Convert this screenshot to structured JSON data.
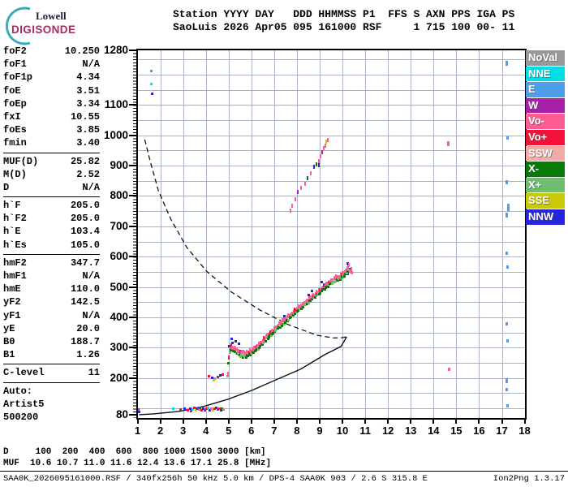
{
  "header": {
    "logo": {
      "line1": "Lowell",
      "line2": "DIGISONDE"
    },
    "info_line1": "Station YYYY DAY   DDD HHMMSS P1  FFS S AXN PPS IGA PS",
    "info_line2": "SaoLuis 2026 Apr05 095 161000 RSF     1 715 100 00- 11"
  },
  "left_panel": {
    "sections": [
      {
        "rows": [
          [
            "foF2",
            "10.250"
          ],
          [
            "foF1",
            "N/A"
          ],
          [
            "foF1p",
            "4.34"
          ],
          [
            "foE",
            "3.51"
          ],
          [
            "foEp",
            "3.34"
          ],
          [
            "fxI",
            "10.55"
          ],
          [
            "foEs",
            "3.85"
          ],
          [
            "fmin",
            "3.40"
          ]
        ]
      },
      {
        "rows": [
          [
            "MUF(D)",
            "25.82"
          ],
          [
            "M(D)",
            "2.52"
          ],
          [
            "D",
            "N/A"
          ]
        ]
      },
      {
        "rows": [
          [
            "h`F",
            "205.0"
          ],
          [
            "h`F2",
            "205.0"
          ],
          [
            "h`E",
            "103.4"
          ],
          [
            "h`Es",
            "105.0"
          ]
        ]
      },
      {
        "rows": [
          [
            "hmF2",
            "347.7"
          ],
          [
            "hmF1",
            "N/A"
          ],
          [
            "hmE",
            "110.0"
          ],
          [
            "yF2",
            "142.5"
          ],
          [
            "yF1",
            "N/A"
          ],
          [
            "yE",
            "20.0"
          ],
          [
            "B0",
            "188.7"
          ],
          [
            "B1",
            "1.26"
          ]
        ]
      },
      {
        "rows": [
          [
            "C-level",
            "11"
          ]
        ]
      },
      {
        "rows": [
          [
            "Auto:",
            ""
          ],
          [
            "Artist5",
            ""
          ],
          [
            "500200",
            ""
          ]
        ]
      }
    ]
  },
  "muf_table": {
    "rows": [
      {
        "label": "D",
        "values": [
          "100",
          "200",
          "400",
          "600",
          "800",
          "1000",
          "1500",
          "3000"
        ],
        "unit": "[km]"
      },
      {
        "label": "MUF",
        "values": [
          "10.6",
          "10.7",
          "11.0",
          "11.6",
          "12.4",
          "13.6",
          "17.1",
          "25.8"
        ],
        "unit": "[MHz]"
      }
    ]
  },
  "status_bar": {
    "left": "SAA0K_2026095161000.RSF / 340fx256h 50 kHz 5.0 km / DPS-4 SAA0K 903 / 2.6 S 315.8 E",
    "right": "Ion2Png 1.3.17"
  },
  "chart_data": {
    "type": "scatter",
    "title": "Digisonde ionogram SaoLuis 2026 Apr05 095 161000",
    "x_axis": {
      "unit": "MHz",
      "min": 1,
      "max": 18,
      "ticks": [
        1,
        2,
        3,
        4,
        5,
        6,
        7,
        8,
        9,
        10,
        11,
        12,
        13,
        14,
        15,
        16,
        17,
        18
      ]
    },
    "y_axis": {
      "unit": "km",
      "min": 68,
      "max": 1280,
      "labeled_ticks": [
        1280,
        1100,
        1000,
        900,
        800,
        700,
        600,
        500,
        400,
        300,
        200,
        80
      ]
    },
    "grid": {
      "v_step_mhz": 1,
      "h_step_km": 50,
      "color": "#a9b3c6"
    },
    "legend": [
      {
        "label": "NoVal",
        "color": "#999999"
      },
      {
        "label": "NNE",
        "color": "#00dfe8"
      },
      {
        "label": "E",
        "color": "#4d9fec"
      },
      {
        "label": "W",
        "color": "#a61fa6"
      },
      {
        "label": "Vo-",
        "color": "#ff5c93"
      },
      {
        "label": "Vo+",
        "color": "#f21237"
      },
      {
        "label": "SSW",
        "color": "#f2aca6"
      },
      {
        "label": "X-",
        "color": "#077a07"
      },
      {
        "label": "X+",
        "color": "#6fbe6f"
      },
      {
        "label": "SSE",
        "color": "#c9c909"
      },
      {
        "label": "NNW",
        "color": "#2525dd"
      }
    ],
    "f_trace": {
      "comment": "F-region echo trace h'(f): green X-mode band with pink/red O-mode band above",
      "backbone": [
        [
          4.95,
          205
        ],
        [
          4.98,
          230
        ],
        [
          5.0,
          255
        ],
        [
          5.03,
          278
        ],
        [
          5.07,
          290
        ],
        [
          5.15,
          293
        ],
        [
          5.25,
          285
        ],
        [
          5.4,
          276
        ],
        [
          5.6,
          271
        ],
        [
          5.8,
          272
        ],
        [
          6.0,
          280
        ],
        [
          6.2,
          292
        ],
        [
          6.4,
          306
        ],
        [
          6.7,
          330
        ],
        [
          7.0,
          352
        ],
        [
          7.3,
          372
        ],
        [
          7.6,
          392
        ],
        [
          7.9,
          412
        ],
        [
          8.2,
          430
        ],
        [
          8.5,
          450
        ],
        [
          8.8,
          468
        ],
        [
          9.1,
          487
        ],
        [
          9.4,
          505
        ],
        [
          9.6,
          515
        ],
        [
          9.8,
          524
        ],
        [
          9.95,
          530
        ],
        [
          10.05,
          535
        ],
        [
          10.15,
          542
        ],
        [
          10.22,
          550
        ],
        [
          10.28,
          560
        ]
      ]
    },
    "profile_solid": [
      [
        10.17,
        336
      ],
      [
        9.92,
        304
      ],
      [
        9.21,
        277
      ],
      [
        8.14,
        229
      ],
      [
        7.07,
        194
      ],
      [
        6.0,
        159
      ],
      [
        4.95,
        130
      ],
      [
        3.88,
        106
      ],
      [
        2.81,
        90
      ],
      [
        1.74,
        82
      ],
      [
        1.05,
        79
      ]
    ],
    "profile_dashed": [
      [
        1.3,
        986
      ],
      [
        1.55,
        911
      ],
      [
        1.9,
        817
      ],
      [
        2.44,
        724
      ],
      [
        3.15,
        630
      ],
      [
        4.04,
        550
      ],
      [
        5.11,
        483
      ],
      [
        6.36,
        424
      ],
      [
        7.6,
        376
      ],
      [
        8.85,
        341
      ],
      [
        9.6,
        332
      ],
      [
        10.0,
        333
      ],
      [
        10.17,
        336
      ]
    ],
    "second_hop": [
      [
        7.7,
        752,
        "Vo-"
      ],
      [
        7.8,
        768,
        "Vo-"
      ],
      [
        7.92,
        790,
        "Vo-"
      ],
      [
        8.05,
        812,
        "W"
      ],
      [
        8.18,
        826,
        "Vo-"
      ],
      [
        8.34,
        840,
        "Vo-"
      ],
      [
        8.47,
        858,
        "X-"
      ],
      [
        8.6,
        876,
        "Vo-"
      ],
      [
        8.76,
        896,
        "NNW"
      ],
      [
        8.86,
        905,
        "X-"
      ],
      [
        8.95,
        902,
        "NNW"
      ],
      [
        8.98,
        915,
        "Vo-"
      ],
      [
        9.05,
        930,
        "Vo-"
      ],
      [
        9.12,
        945,
        "W"
      ],
      [
        9.18,
        958,
        "Vo-"
      ],
      [
        9.25,
        966,
        "Vo-"
      ],
      [
        9.3,
        978,
        "SSE"
      ],
      [
        9.36,
        985,
        "Vo-"
      ]
    ],
    "es_cluster": [
      [
        3.22,
        95,
        "Vo+"
      ],
      [
        3.3,
        99,
        "NNW"
      ],
      [
        3.36,
        92,
        "W"
      ],
      [
        3.42,
        97,
        "NNE"
      ],
      [
        3.5,
        101,
        "Vo+"
      ],
      [
        3.56,
        94,
        "SSE"
      ],
      [
        3.62,
        99,
        "NNW"
      ],
      [
        3.7,
        96,
        "Vo-"
      ],
      [
        3.76,
        102,
        "X-"
      ],
      [
        3.82,
        95,
        "Vo+"
      ],
      [
        3.9,
        99,
        "NNW"
      ],
      [
        3.96,
        93,
        "W"
      ],
      [
        4.02,
        98,
        "Vo+"
      ],
      [
        4.1,
        101,
        "NNE"
      ],
      [
        4.16,
        95,
        "NNW"
      ],
      [
        4.24,
        99,
        "Vo-"
      ],
      [
        4.3,
        94,
        "SSE"
      ],
      [
        4.38,
        98,
        "Vo+"
      ],
      [
        4.44,
        102,
        "NNW"
      ],
      [
        4.52,
        96,
        "W"
      ],
      [
        4.6,
        100,
        "Vo+"
      ],
      [
        4.66,
        94,
        "NNW"
      ],
      [
        4.72,
        98,
        "X-"
      ],
      [
        4.78,
        96,
        "Vo-"
      ],
      [
        2.55,
        98,
        "NNE"
      ],
      [
        2.9,
        96,
        "Vo+"
      ],
      [
        3.05,
        100,
        "NNW"
      ],
      [
        1.04,
        96,
        "Vo+"
      ],
      [
        1.07,
        89,
        "NNW"
      ]
    ],
    "scatter_points": [
      [
        4.15,
        207,
        "Vo+"
      ],
      [
        4.28,
        201,
        "NNW"
      ],
      [
        4.4,
        199,
        "Vo-"
      ],
      [
        4.52,
        204,
        "W"
      ],
      [
        4.65,
        209,
        "NNW"
      ],
      [
        4.75,
        212,
        "Vo+"
      ],
      [
        4.35,
        193,
        "SSE"
      ],
      [
        5.02,
        306,
        "NNW"
      ],
      [
        5.18,
        316,
        "NNW"
      ],
      [
        5.32,
        322,
        "NNW"
      ],
      [
        5.45,
        312,
        "NNW"
      ],
      [
        5.12,
        330,
        "NNW"
      ],
      [
        10.18,
        556,
        "NNW"
      ],
      [
        10.28,
        574,
        "NNW"
      ],
      [
        10.32,
        552,
        "Vo-"
      ],
      [
        10.24,
        542,
        "NNW"
      ],
      [
        10.35,
        560,
        "NNW"
      ],
      [
        10.34,
        552,
        "Vo-",
        2,
        5
      ],
      [
        10.4,
        560,
        "Vo-",
        2,
        5
      ],
      [
        10.44,
        548,
        "Vo-",
        2,
        4
      ],
      [
        1.62,
        1212,
        "E"
      ],
      [
        1.6,
        1170,
        "NNE"
      ],
      [
        1.65,
        1136,
        "NNW"
      ],
      [
        14.65,
        972,
        "Vo-",
        3,
        6
      ],
      [
        14.7,
        230,
        "Vo-",
        3,
        4
      ],
      [
        17.2,
        1238,
        "E",
        3,
        6
      ],
      [
        17.25,
        992,
        "E",
        3,
        4
      ],
      [
        17.2,
        845,
        "E",
        3,
        5
      ],
      [
        17.28,
        762,
        "E",
        3,
        9
      ],
      [
        17.22,
        738,
        "E",
        3,
        6
      ],
      [
        17.2,
        612,
        "E",
        3,
        4
      ],
      [
        17.25,
        565,
        "E",
        3,
        4
      ],
      [
        17.22,
        378,
        "E",
        3,
        4
      ],
      [
        17.25,
        322,
        "E",
        3,
        4
      ],
      [
        17.2,
        190,
        "E",
        3,
        6
      ],
      [
        17.22,
        162,
        "E",
        3,
        4
      ],
      [
        17.25,
        108,
        "E",
        3,
        4
      ]
    ]
  }
}
